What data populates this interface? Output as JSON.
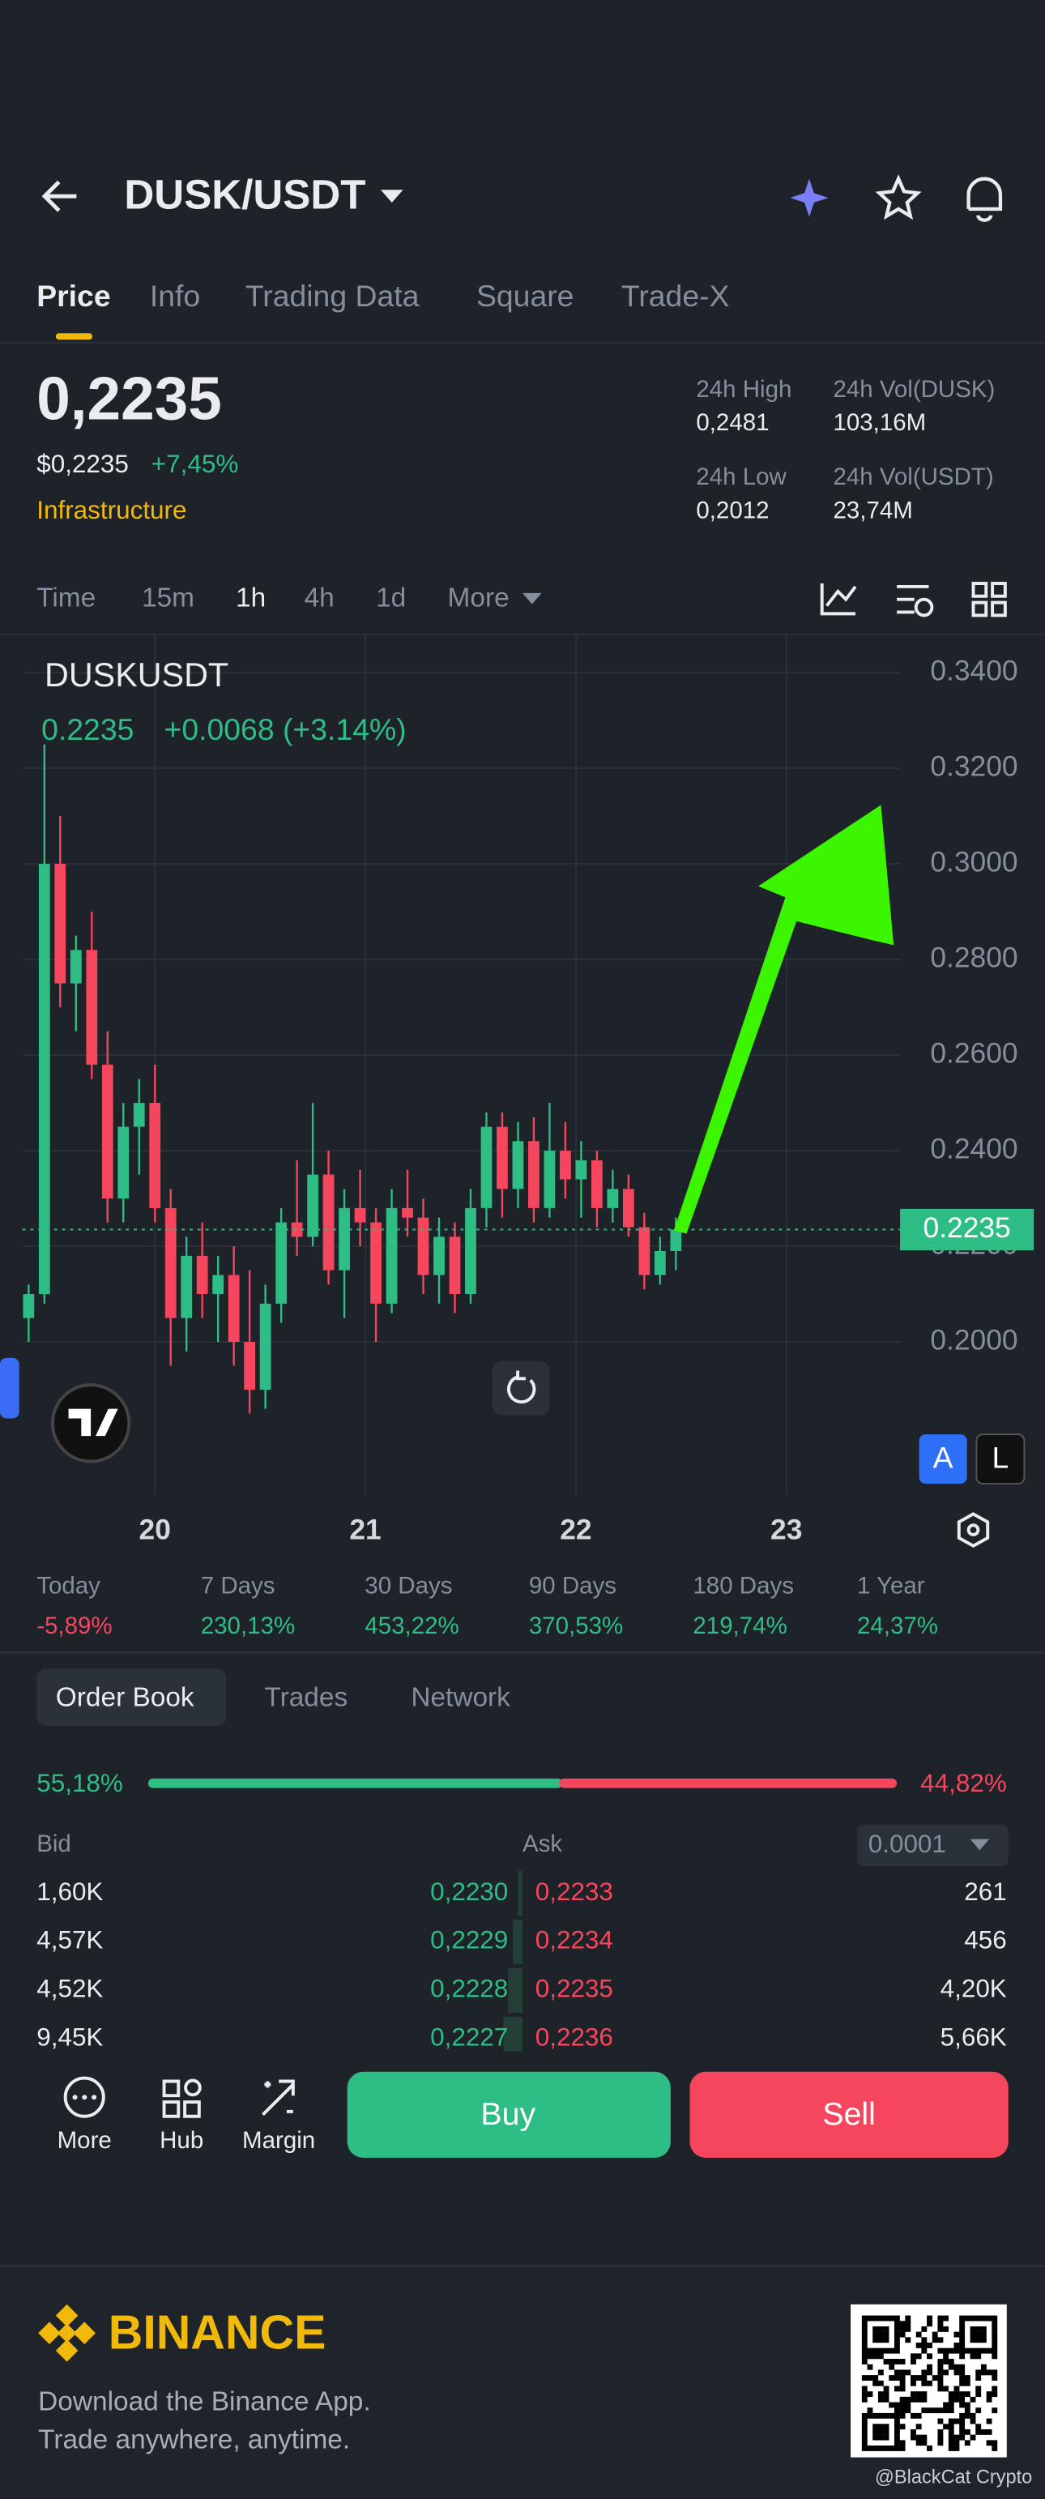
{
  "header": {
    "pair": "DUSK/USDT"
  },
  "tabs": [
    "Price",
    "Info",
    "Trading Data",
    "Square",
    "Trade-X"
  ],
  "price": {
    "last": "0,2235",
    "usd": "$0,2235",
    "change": "+7,45%",
    "tag": "Infrastructure"
  },
  "stats": [
    {
      "label": "24h High",
      "value": "0,2481"
    },
    {
      "label": "24h Vol(DUSK)",
      "value": "103,16M"
    },
    {
      "label": "24h Low",
      "value": "0,2012"
    },
    {
      "label": "24h Vol(USDT)",
      "value": "23,74M"
    }
  ],
  "intervals": [
    "Time",
    "15m",
    "1h",
    "4h",
    "1d",
    "More"
  ],
  "chart_data": {
    "type": "candlestick",
    "title": "DUSKUSDT",
    "change": "+0.0068 (+3.14%)",
    "last_price": {
      "value": 0.2235,
      "label": "0.2235"
    },
    "up_color": "#2ebd85",
    "down_color": "#f6465d",
    "grid": true,
    "xlim": [
      19.37,
      23.54
    ],
    "xticks": [
      20,
      21,
      22,
      23
    ],
    "ylim": [
      0.168,
      0.348
    ],
    "yticks": [
      {
        "value": 0.34,
        "label": "0.3400"
      },
      {
        "value": 0.32,
        "label": "0.3200"
      },
      {
        "value": 0.3,
        "label": "0.3000"
      },
      {
        "value": 0.28,
        "label": "0.2800"
      },
      {
        "value": 0.26,
        "label": "0.2600"
      },
      {
        "value": 0.24,
        "label": "0.2400"
      },
      {
        "value": 0.22,
        "label": "0.2200"
      },
      {
        "value": 0.2,
        "label": "0.2000"
      }
    ],
    "candles": [
      {
        "x": 19.4,
        "open": 0.205,
        "high": 0.212,
        "low": 0.2,
        "close": 0.21
      },
      {
        "x": 19.475,
        "open": 0.21,
        "high": 0.325,
        "low": 0.208,
        "close": 0.3
      },
      {
        "x": 19.55,
        "open": 0.3,
        "high": 0.31,
        "low": 0.27,
        "close": 0.275
      },
      {
        "x": 19.625,
        "open": 0.275,
        "high": 0.285,
        "low": 0.265,
        "close": 0.282
      },
      {
        "x": 19.7,
        "open": 0.282,
        "high": 0.29,
        "low": 0.255,
        "close": 0.258
      },
      {
        "x": 19.775,
        "open": 0.258,
        "high": 0.265,
        "low": 0.225,
        "close": 0.23
      },
      {
        "x": 19.85,
        "open": 0.23,
        "high": 0.25,
        "low": 0.225,
        "close": 0.245
      },
      {
        "x": 19.925,
        "open": 0.245,
        "high": 0.255,
        "low": 0.235,
        "close": 0.25
      },
      {
        "x": 20.0,
        "open": 0.25,
        "high": 0.258,
        "low": 0.225,
        "close": 0.228
      },
      {
        "x": 20.075,
        "open": 0.228,
        "high": 0.232,
        "low": 0.195,
        "close": 0.205
      },
      {
        "x": 20.15,
        "open": 0.205,
        "high": 0.222,
        "low": 0.198,
        "close": 0.218
      },
      {
        "x": 20.225,
        "open": 0.218,
        "high": 0.225,
        "low": 0.205,
        "close": 0.21
      },
      {
        "x": 20.3,
        "open": 0.21,
        "high": 0.218,
        "low": 0.2,
        "close": 0.214
      },
      {
        "x": 20.375,
        "open": 0.214,
        "high": 0.22,
        "low": 0.195,
        "close": 0.2
      },
      {
        "x": 20.45,
        "open": 0.2,
        "high": 0.215,
        "low": 0.185,
        "close": 0.19
      },
      {
        "x": 20.525,
        "open": 0.19,
        "high": 0.212,
        "low": 0.186,
        "close": 0.208
      },
      {
        "x": 20.6,
        "open": 0.208,
        "high": 0.228,
        "low": 0.204,
        "close": 0.225
      },
      {
        "x": 20.675,
        "open": 0.225,
        "high": 0.238,
        "low": 0.218,
        "close": 0.222
      },
      {
        "x": 20.75,
        "open": 0.222,
        "high": 0.25,
        "low": 0.22,
        "close": 0.235
      },
      {
        "x": 20.825,
        "open": 0.235,
        "high": 0.24,
        "low": 0.212,
        "close": 0.215
      },
      {
        "x": 20.9,
        "open": 0.215,
        "high": 0.232,
        "low": 0.205,
        "close": 0.228
      },
      {
        "x": 20.975,
        "open": 0.228,
        "high": 0.236,
        "low": 0.22,
        "close": 0.225
      },
      {
        "x": 21.05,
        "open": 0.225,
        "high": 0.228,
        "low": 0.2,
        "close": 0.208
      },
      {
        "x": 21.125,
        "open": 0.208,
        "high": 0.232,
        "low": 0.206,
        "close": 0.228
      },
      {
        "x": 21.2,
        "open": 0.228,
        "high": 0.236,
        "low": 0.222,
        "close": 0.226
      },
      {
        "x": 21.275,
        "open": 0.226,
        "high": 0.23,
        "low": 0.21,
        "close": 0.214
      },
      {
        "x": 21.35,
        "open": 0.214,
        "high": 0.226,
        "low": 0.208,
        "close": 0.222
      },
      {
        "x": 21.425,
        "open": 0.222,
        "high": 0.225,
        "low": 0.206,
        "close": 0.21
      },
      {
        "x": 21.5,
        "open": 0.21,
        "high": 0.232,
        "low": 0.208,
        "close": 0.228
      },
      {
        "x": 21.575,
        "open": 0.228,
        "high": 0.248,
        "low": 0.224,
        "close": 0.245
      },
      {
        "x": 21.65,
        "open": 0.245,
        "high": 0.248,
        "low": 0.226,
        "close": 0.232
      },
      {
        "x": 21.725,
        "open": 0.232,
        "high": 0.246,
        "low": 0.228,
        "close": 0.242
      },
      {
        "x": 21.8,
        "open": 0.242,
        "high": 0.247,
        "low": 0.225,
        "close": 0.228
      },
      {
        "x": 21.875,
        "open": 0.228,
        "high": 0.25,
        "low": 0.226,
        "close": 0.24
      },
      {
        "x": 21.95,
        "open": 0.24,
        "high": 0.246,
        "low": 0.23,
        "close": 0.234
      },
      {
        "x": 22.025,
        "open": 0.234,
        "high": 0.242,
        "low": 0.226,
        "close": 0.238
      },
      {
        "x": 22.1,
        "open": 0.238,
        "high": 0.24,
        "low": 0.224,
        "close": 0.228
      },
      {
        "x": 22.175,
        "open": 0.228,
        "high": 0.236,
        "low": 0.225,
        "close": 0.232
      },
      {
        "x": 22.25,
        "open": 0.232,
        "high": 0.235,
        "low": 0.222,
        "close": 0.224
      },
      {
        "x": 22.325,
        "open": 0.224,
        "high": 0.227,
        "low": 0.211,
        "close": 0.214
      },
      {
        "x": 22.4,
        "open": 0.214,
        "high": 0.222,
        "low": 0.212,
        "close": 0.219
      },
      {
        "x": 22.475,
        "open": 0.219,
        "high": 0.226,
        "low": 0.215,
        "close": 0.2235
      }
    ],
    "buttons": [
      "A",
      "L"
    ]
  },
  "performance": [
    {
      "label": "Today",
      "value": "-5,89%"
    },
    {
      "label": "7 Days",
      "value": "230,13%"
    },
    {
      "label": "30 Days",
      "value": "453,22%"
    },
    {
      "label": "90 Days",
      "value": "370,53%"
    },
    {
      "label": "180 Days",
      "value": "219,74%"
    },
    {
      "label": "1 Year",
      "value": "24,37%"
    }
  ],
  "order_book": {
    "tabs": [
      "Order Book",
      "Trades",
      "Network"
    ],
    "bid_pct": "55,18%",
    "ask_pct": "44,82%",
    "bid": "Bid",
    "ask": "Ask",
    "precision": "0.0001",
    "rows": [
      [
        "1,60K",
        "0,2230",
        "0,2233",
        "261"
      ],
      [
        "4,57K",
        "0,2229",
        "0,2234",
        "456"
      ],
      [
        "4,52K",
        "0,2228",
        "0,2235",
        "4,20K"
      ],
      [
        "9,45K",
        "0,2227",
        "0,2236",
        "5,66K"
      ]
    ]
  },
  "bottom": {
    "nav": [
      "More",
      "Hub",
      "Margin"
    ],
    "buy": "Buy",
    "sell": "Sell"
  },
  "footer": {
    "brand": "BINANCE",
    "line1": "Download the Binance App.",
    "line2": "Trade anywhere, anytime.",
    "watermark": "@BlackCat Crypto"
  }
}
